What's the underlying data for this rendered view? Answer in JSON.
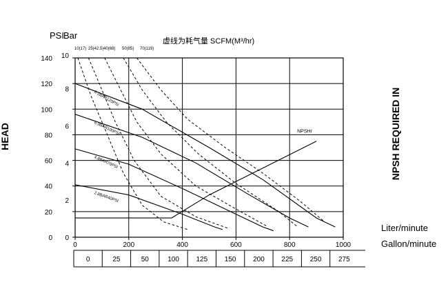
{
  "chart_data": {
    "type": "line",
    "title": "虚线为耗气量 SCFM(M³/hr)",
    "left_axis_label": "HEAD",
    "right_axis_label": "NPSH REQUIRED IN",
    "psi_label": "PSI",
    "bar_label": "Bar",
    "liter_label": "Liter/minute",
    "gallon_label": "Gallon/minute",
    "x_lpm": {
      "range": [
        0,
        1000
      ],
      "ticks": [
        "0",
        "200",
        "400",
        "600",
        "800",
        "1000"
      ]
    },
    "x_gpm": {
      "range": [
        0,
        275
      ],
      "ticks": [
        "0",
        "25",
        "50",
        "100",
        "125",
        "150",
        "200",
        "225",
        "250",
        "275"
      ]
    },
    "y_psi": {
      "range": [
        0,
        140
      ],
      "ticks": [
        "0",
        "20",
        "40",
        "60",
        "80",
        "100",
        "120",
        "140"
      ]
    },
    "y_bar": {
      "ticks": [
        "0",
        "2",
        "4",
        "6",
        "8",
        "10"
      ]
    },
    "scfm_labels": [
      "10(17)",
      "25(42.5)",
      "40(68)",
      "50(85)",
      "70(119)"
    ],
    "pressure_curves": [
      {
        "name": "8.3BAR120PSI",
        "points": [
          [
            0,
            120
          ],
          [
            250,
            100
          ],
          [
            500,
            70
          ],
          [
            700,
            45
          ],
          [
            900,
            15
          ],
          [
            970,
            8
          ]
        ]
      },
      {
        "name": "6.9BAR100PSI",
        "points": [
          [
            0,
            96
          ],
          [
            250,
            78
          ],
          [
            450,
            58
          ],
          [
            650,
            33
          ],
          [
            800,
            15
          ],
          [
            870,
            8
          ]
        ]
      },
      {
        "name": "4.8BAR70PSI",
        "points": [
          [
            0,
            69
          ],
          [
            200,
            57
          ],
          [
            400,
            38
          ],
          [
            600,
            18
          ],
          [
            700,
            8
          ],
          [
            740,
            5
          ]
        ]
      },
      {
        "name": "2.8BAR40PSI",
        "points": [
          [
            0,
            41
          ],
          [
            200,
            33
          ],
          [
            400,
            18
          ],
          [
            520,
            8
          ],
          [
            550,
            6
          ]
        ]
      }
    ],
    "npsh_curve": {
      "name": "NPSHr",
      "points": [
        [
          0,
          15
        ],
        [
          360,
          15
        ],
        [
          500,
          33
        ],
        [
          700,
          54
        ],
        [
          900,
          75
        ]
      ]
    },
    "air_consumption_curves": [
      {
        "name": "10(17)",
        "points": [
          [
            10,
            140
          ],
          [
            60,
            110
          ],
          [
            120,
            80
          ],
          [
            180,
            50
          ],
          [
            250,
            25
          ],
          [
            330,
            12
          ],
          [
            420,
            6
          ]
        ]
      },
      {
        "name": "25(42.5)",
        "points": [
          [
            50,
            140
          ],
          [
            100,
            115
          ],
          [
            150,
            90
          ],
          [
            220,
            60
          ],
          [
            320,
            32
          ],
          [
            450,
            16
          ],
          [
            570,
            7
          ]
        ]
      },
      {
        "name": "40(68)",
        "points": [
          [
            110,
            140
          ],
          [
            170,
            115
          ],
          [
            230,
            90
          ],
          [
            320,
            65
          ],
          [
            450,
            40
          ],
          [
            600,
            22
          ],
          [
            720,
            8
          ]
        ]
      },
      {
        "name": "50(85)",
        "points": [
          [
            180,
            140
          ],
          [
            250,
            115
          ],
          [
            340,
            90
          ],
          [
            460,
            65
          ],
          [
            600,
            42
          ],
          [
            760,
            20
          ],
          [
            830,
            8
          ]
        ]
      },
      {
        "name": "70(119)",
        "points": [
          [
            230,
            140
          ],
          [
            320,
            115
          ],
          [
            420,
            92
          ],
          [
            560,
            70
          ],
          [
            700,
            50
          ],
          [
            840,
            28
          ],
          [
            930,
            12
          ]
        ]
      }
    ],
    "grid": true
  }
}
